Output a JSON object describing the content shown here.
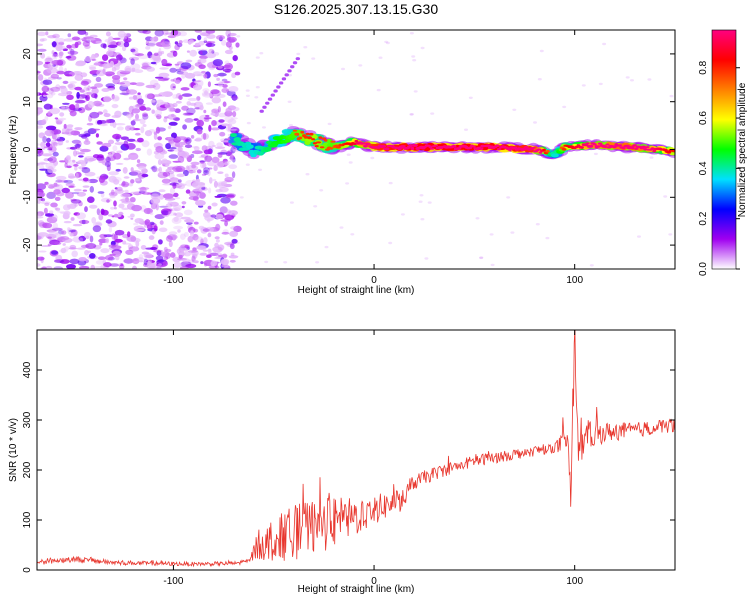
{
  "title": "S126.2025.307.13.15.G30",
  "chart_data": [
    {
      "type": "heatmap",
      "name": "spectrogram",
      "xlabel": "Height of straight line (km)",
      "ylabel": "Frequency (Hz)",
      "xlim": [
        -168,
        150
      ],
      "ylim": [
        -25,
        25
      ],
      "xticks": [
        -100,
        0,
        100
      ],
      "xtick_labels": [
        "-100",
        "0",
        "100"
      ],
      "yticks": [
        -20,
        -10,
        0,
        10,
        20
      ],
      "ytick_labels": [
        "-20",
        "-10",
        "0",
        "10",
        "20"
      ],
      "noise_region_x": [
        -168,
        -68
      ],
      "signal": {
        "description_points_x": [
          -70,
          -60,
          -50,
          -40,
          -30,
          -20,
          -10,
          0,
          20,
          40,
          60,
          80,
          90,
          95,
          110,
          130,
          150
        ],
        "freq_hz": [
          2.5,
          -0.5,
          1.5,
          3.5,
          2.0,
          0.5,
          1.5,
          0.5,
          0.5,
          0.5,
          0.5,
          0.0,
          -1.0,
          0.5,
          1.0,
          0.5,
          -0.5
        ],
        "amplitude": [
          0.45,
          0.4,
          0.5,
          0.55,
          0.6,
          0.55,
          0.65,
          0.85,
          0.9,
          0.9,
          0.9,
          0.85,
          0.4,
          0.6,
          0.75,
          0.8,
          0.6
        ]
      },
      "secondary_streak": {
        "x": [
          -56,
          -38
        ],
        "freq_hz": [
          8,
          19
        ]
      },
      "colorbar": {
        "label": "Normalized spectral amplitude",
        "range": [
          0,
          0.95
        ],
        "ticks": [
          0.0,
          0.2,
          0.4,
          0.6,
          0.8
        ],
        "tick_labels": [
          "0.0",
          "0.2",
          "0.4",
          "0.6",
          "0.8"
        ],
        "colors": [
          "#ffffff",
          "#a000f0",
          "#0000ff",
          "#00e0ff",
          "#00ff00",
          "#ffff00",
          "#ff8000",
          "#ff0000",
          "#ff0080"
        ]
      }
    },
    {
      "type": "line",
      "name": "snr",
      "xlabel": "Height of straight line (km)",
      "ylabel": "SNR (10 * v/v)",
      "xlim": [
        -168,
        150
      ],
      "ylim": [
        0,
        480
      ],
      "xticks": [
        -100,
        0,
        100
      ],
      "xtick_labels": [
        "-100",
        "0",
        "100"
      ],
      "yticks": [
        0,
        100,
        200,
        300,
        400
      ],
      "ytick_labels": [
        "0",
        "100",
        "200",
        "300",
        "400"
      ],
      "line_color": "#e8372e",
      "series": [
        {
          "name": "SNR",
          "x": [
            -168,
            -150,
            -130,
            -110,
            -90,
            -70,
            -62,
            -58,
            -50,
            -40,
            -30,
            -20,
            -10,
            0,
            10,
            15,
            18,
            25,
            35,
            50,
            60,
            75,
            90,
            96,
            98,
            100,
            102,
            106,
            115,
            130,
            150
          ],
          "y": [
            16,
            22,
            15,
            13,
            12,
            13,
            18,
            50,
            60,
            75,
            85,
            95,
            105,
            120,
            135,
            140,
            170,
            185,
            200,
            218,
            225,
            235,
            245,
            255,
            160,
            460,
            230,
            270,
            275,
            280,
            290
          ],
          "noise_amplitude": [
            6,
            6,
            5,
            4,
            4,
            4,
            6,
            30,
            45,
            55,
            55,
            50,
            40,
            30,
            25,
            20,
            15,
            14,
            13,
            12,
            12,
            11,
            10,
            30,
            60,
            60,
            30,
            30,
            20,
            15,
            15
          ]
        }
      ]
    }
  ]
}
